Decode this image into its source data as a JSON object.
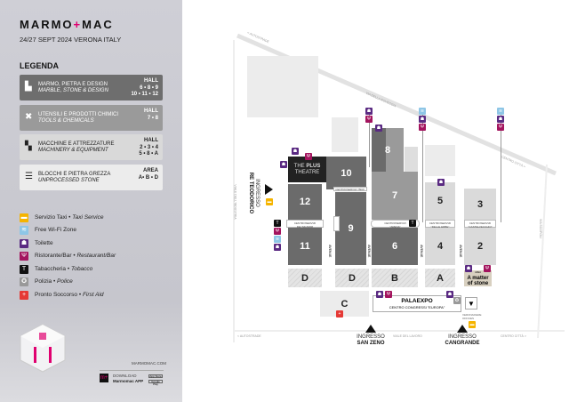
{
  "brand": {
    "logo_left": "MARMO",
    "logo_plus": "+",
    "logo_right": "MAC",
    "date": "24/27 SEPT 2024 VERONA ITALY",
    "accent": "#e0006f"
  },
  "legend": {
    "title": "LEGENDA",
    "items": [
      {
        "it": "MARMO, PIETRA E DESIGN",
        "en": "MARBLE, STONE & DESIGN",
        "kind": "HALL",
        "halls1": "6 • 8 • 9",
        "halls2": "10 • 11 • 12",
        "color": "#6e6e6e"
      },
      {
        "it": "UTENSILI E PRODOTTI CHIMICI",
        "en": "TOOLS & CHEMICALS",
        "kind": "HALL",
        "halls1": "7 • 8",
        "halls2": "",
        "color": "#9a9a9a"
      },
      {
        "it": "MACCHINE E ATTREZZATURE",
        "en": "MACHINERY & EQUIPMENT",
        "kind": "HALL",
        "halls1": "2 • 3 • 4",
        "halls2": "5 • 8 • A",
        "color": "#d9d9d9"
      },
      {
        "it": "BLOCCHI E PIETRA GREZZA",
        "en": "UNPROCESSED STONE",
        "kind": "AREA",
        "halls1": "A• B • D",
        "halls2": "",
        "color": "#ececec"
      }
    ]
  },
  "services": [
    {
      "it": "Servizio Taxi",
      "en": "Taxi Service",
      "icon": "taxi-icon",
      "color": "#f5b400"
    },
    {
      "it": "Free Wi-Fi Zone",
      "en": "",
      "icon": "wifi-icon",
      "color": "#8ec6e6"
    },
    {
      "it": "Toilette",
      "en": "",
      "icon": "toilet-icon",
      "color": "#5a2a82"
    },
    {
      "it": "Ristorante/Bar",
      "en": "Restaurant/Bar",
      "icon": "restaurant-icon",
      "color": "#a3145e"
    },
    {
      "it": "Tabaccheria",
      "en": "Tobacco",
      "icon": "tobacco-icon",
      "color": "#111111"
    },
    {
      "it": "Polizia",
      "en": "Police",
      "icon": "police-icon",
      "color": "#999999"
    },
    {
      "it": "Pronto Soccorso",
      "en": "First Aid",
      "icon": "first-aid-icon",
      "color": "#e53935"
    }
  ],
  "footer": {
    "site": "MARMOMAC.COM",
    "download": "DOWNLOAD",
    "app": "Marmomac APP",
    "store1": "App Store",
    "store2": "Google Play"
  },
  "map": {
    "theatre1": "THE PLUS",
    "theatre0": "THE ",
    "theatre_b": "PLUS",
    "theatre2": "THEATRE",
    "halls": {
      "h2": "2",
      "h3": "3",
      "h4": "4",
      "h5": "5",
      "h6": "6",
      "h7": "7",
      "h8": "8",
      "h9": "9",
      "h10": "10",
      "h11": "11",
      "h12": "12"
    },
    "areas": {
      "a": "A",
      "b": "B",
      "c": "C",
      "d1": "D",
      "d2": "D"
    },
    "stone": {
      "small": "AREA",
      "line1": "A matter",
      "line2": "of stone"
    },
    "centroservizi": {
      "signori1": "CENTROSERVIZI",
      "signori2": "DEI SIGNORI",
      "arena1": "CENTROSERVIZI",
      "arena2": "\"ARENA\"",
      "erbe1": "CENTROSERVIZI",
      "erbe2": "\"DELLE ERBE\"",
      "castel1": "CENTROSERVIZI",
      "castel2": "\"CASTELVECCHIO\"",
      "bra": "CENTROSERVIZI \"BRA\""
    },
    "palaexpo": {
      "title": "PALAEXPO",
      "sub": "CENTRO CONGRESSI \"EUROPA\""
    },
    "offices": "VERONAFIERE OFFICES",
    "entrances": {
      "e1a": "INGRESSO",
      "e1b": "SAN ZENO",
      "e2a": "INGRESSO",
      "e2b": "CANGRANDE",
      "e3a": "INGRESSO",
      "e3b": "RE TEODORICO"
    },
    "streets": {
      "autostrade_top": "< AUTOSTRADE",
      "rovegga": "VIA DELLA ROVEGGIA",
      "centro_top": "CENTRO CITTÀ >",
      "industria": "VIALE DELL'INDUSTRIA",
      "autostrade_bottom": "< AUTOSTRADE",
      "lavoro": "VIALE DEL LAVORO",
      "centro_bottom": "CENTRO CITTÀ >",
      "scopoli": "VIA SCOPOLI",
      "avenue": "AVENUE"
    }
  }
}
